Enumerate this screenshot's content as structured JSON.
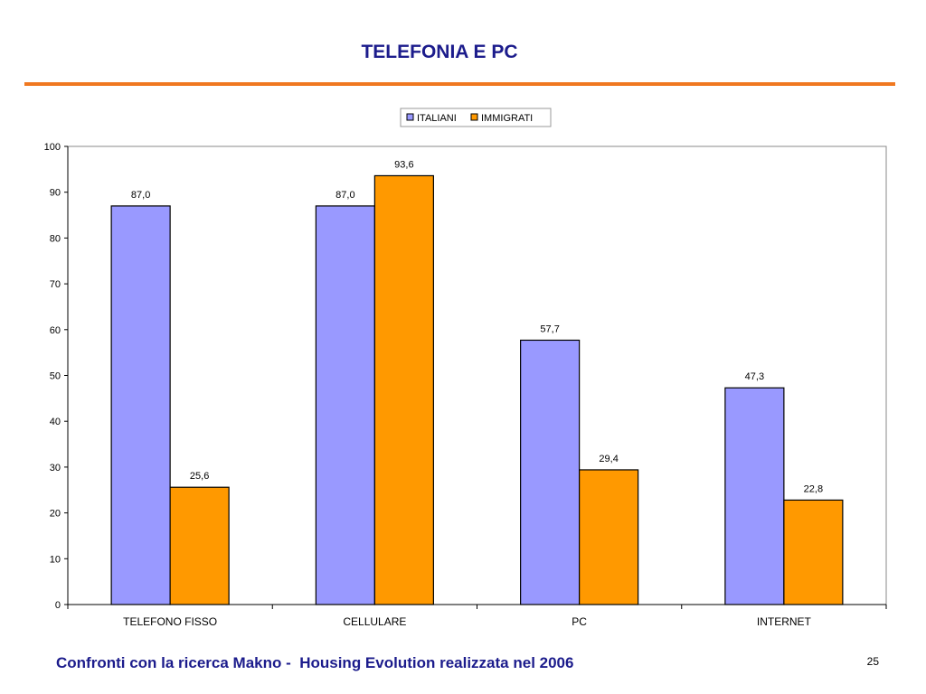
{
  "slide": {
    "title": "TELEFONIA E PC",
    "footer": "Confronti con la ricerca Makno -  Housing Evolution realizzata nel 2006",
    "page_number": "25"
  },
  "colors": {
    "title": "#1c1c8c",
    "rule": "#f07820",
    "footer": "#1c1c8c",
    "italiani": "#9999ff",
    "immigrati": "#ff9900"
  },
  "chart_data": {
    "type": "bar",
    "title": "",
    "xlabel": "",
    "ylabel": "",
    "categories": [
      "TELEFONO FISSO",
      "CELLULARE",
      "PC",
      "INTERNET"
    ],
    "series": [
      {
        "name": "ITALIANI",
        "values": [
          87.0,
          87.0,
          57.7,
          47.3
        ],
        "labels": [
          "87,0",
          "87,0",
          "57,7",
          "47,3"
        ]
      },
      {
        "name": "IMMIGRATI",
        "values": [
          25.6,
          93.6,
          29.4,
          22.8
        ],
        "labels": [
          "25,6",
          "93,6",
          "29,4",
          "22,8"
        ]
      }
    ],
    "ylim": [
      0,
      100
    ],
    "yticks": [
      0,
      10,
      20,
      30,
      40,
      50,
      60,
      70,
      80,
      90,
      100
    ],
    "grid": false,
    "legend_position": "top"
  }
}
